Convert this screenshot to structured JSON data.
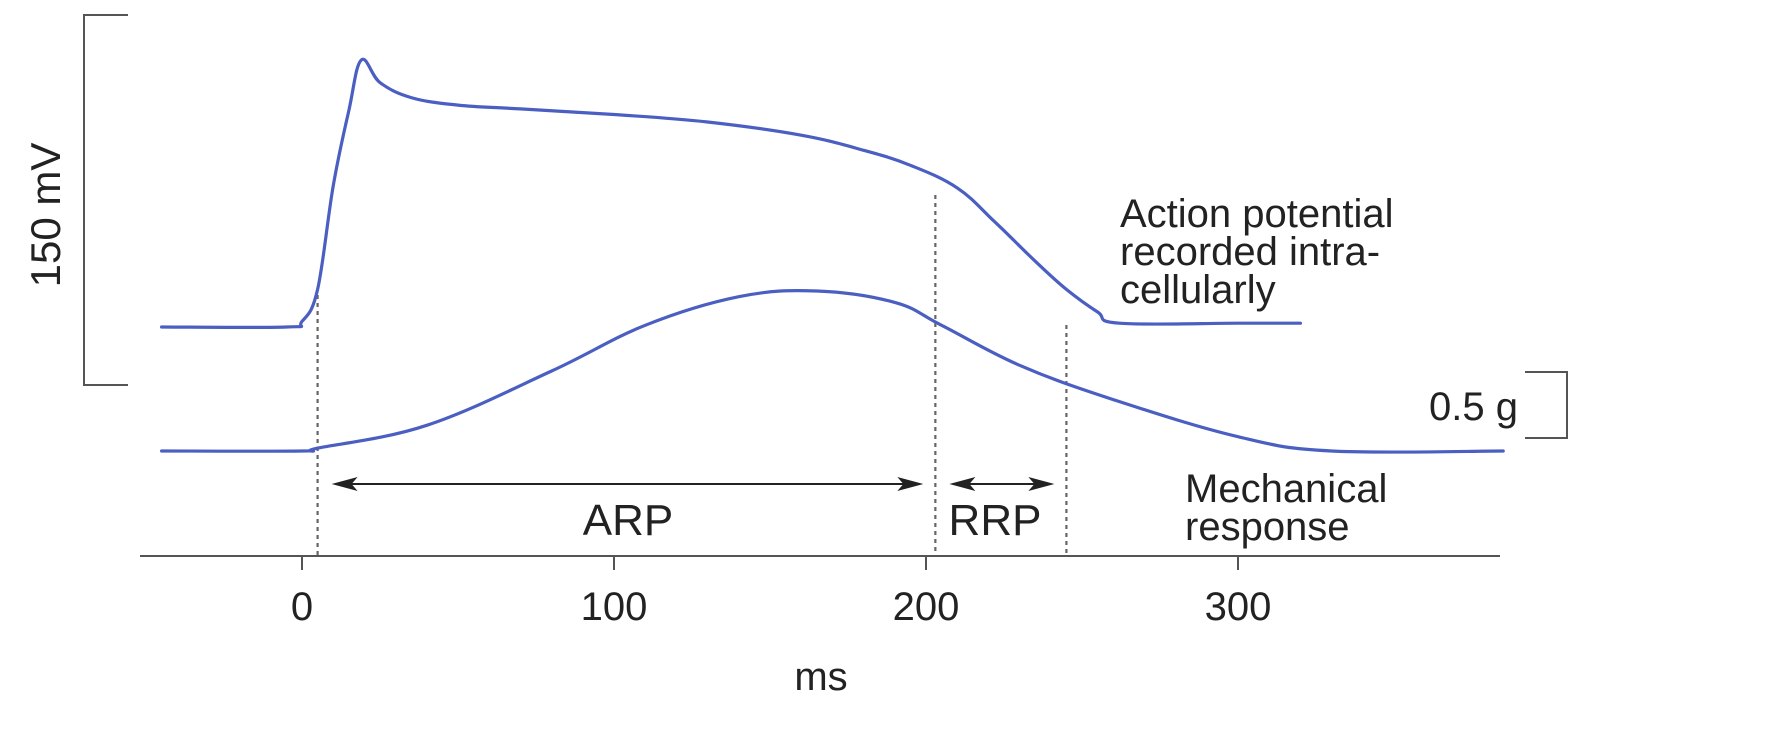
{
  "chart_data": {
    "type": "line",
    "title": "",
    "xlabel": "ms",
    "ylabel": "",
    "xlim": [
      -50,
      385
    ],
    "grid": false,
    "x_ticks": [
      0,
      100,
      200,
      300
    ],
    "x_tick_labels": [
      "0",
      "100",
      "200",
      "300"
    ],
    "colors": {
      "trace": "#4a5fc1",
      "axis": "#555555",
      "text": "#222222"
    },
    "voltage_scale_label": "150 mV",
    "force_scale_label": "0.5 g",
    "series": [
      {
        "name": "Action potential recorded intra-cellularly",
        "label_lines": [
          "Action potential",
          "recorded intra-",
          "cellularly"
        ],
        "unit": "mV",
        "x": [
          -45,
          -5,
          0,
          5,
          10,
          15,
          19,
          25,
          35,
          50,
          70,
          100,
          130,
          160,
          180,
          195,
          210,
          222,
          235,
          245,
          255,
          262,
          300,
          320
        ],
        "y": [
          -90,
          -90,
          -87,
          -70,
          -15,
          25,
          52,
          40,
          32,
          28,
          26,
          23,
          19,
          12,
          4,
          -4,
          -16,
          -34,
          -55,
          -70,
          -82,
          -88,
          -88,
          -88
        ]
      },
      {
        "name": "Mechanical response",
        "label_lines": [
          "Mechanical",
          "response"
        ],
        "unit": "g",
        "x": [
          -45,
          0,
          5,
          40,
          80,
          110,
          140,
          165,
          190,
          205,
          230,
          260,
          300,
          330,
          385
        ],
        "y": [
          0,
          0,
          0.01,
          0.09,
          0.28,
          0.44,
          0.54,
          0.56,
          0.52,
          0.44,
          0.3,
          0.18,
          0.05,
          0,
          0
        ]
      }
    ],
    "reference_lines_x": [
      5,
      203,
      245
    ],
    "intervals": [
      {
        "label": "ARP",
        "start": 5,
        "end": 203
      },
      {
        "label": "RRP",
        "start": 203,
        "end": 245
      }
    ]
  }
}
